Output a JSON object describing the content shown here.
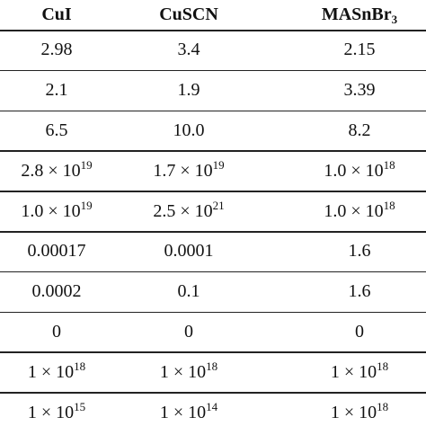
{
  "table": {
    "header": [
      "CuI",
      "CuSCN",
      {
        "base": "MASnBr",
        "sub": "3"
      }
    ],
    "rows": [
      [
        "2.98",
        "3.4",
        "2.15"
      ],
      [
        "2.1",
        "1.9",
        "3.39"
      ],
      [
        "6.5",
        "10.0",
        "8.2"
      ],
      [
        {
          "base": "2.8 × 10",
          "sup": "19"
        },
        {
          "base": "1.7 × 10",
          "sup": "19"
        },
        {
          "base": "1.0 × 10",
          "sup": "18"
        }
      ],
      [
        {
          "base": "1.0 × 10",
          "sup": "19"
        },
        {
          "base": "2.5 × 10",
          "sup": "21"
        },
        {
          "base": "1.0 × 10",
          "sup": "18"
        }
      ],
      [
        "0.00017",
        "0.0001",
        "1.6"
      ],
      [
        "0.0002",
        "0.1",
        "1.6"
      ],
      [
        "0",
        "0",
        "0"
      ],
      [
        {
          "base": "1 × 10",
          "sup": "18"
        },
        {
          "base": "1 × 10",
          "sup": "18"
        },
        {
          "base": "1 × 10",
          "sup": "18"
        }
      ],
      [
        {
          "base": "1 × 10",
          "sup": "15"
        },
        {
          "base": "1 × 10",
          "sup": "14"
        },
        {
          "base": "1 × 10",
          "sup": "18"
        }
      ]
    ]
  }
}
